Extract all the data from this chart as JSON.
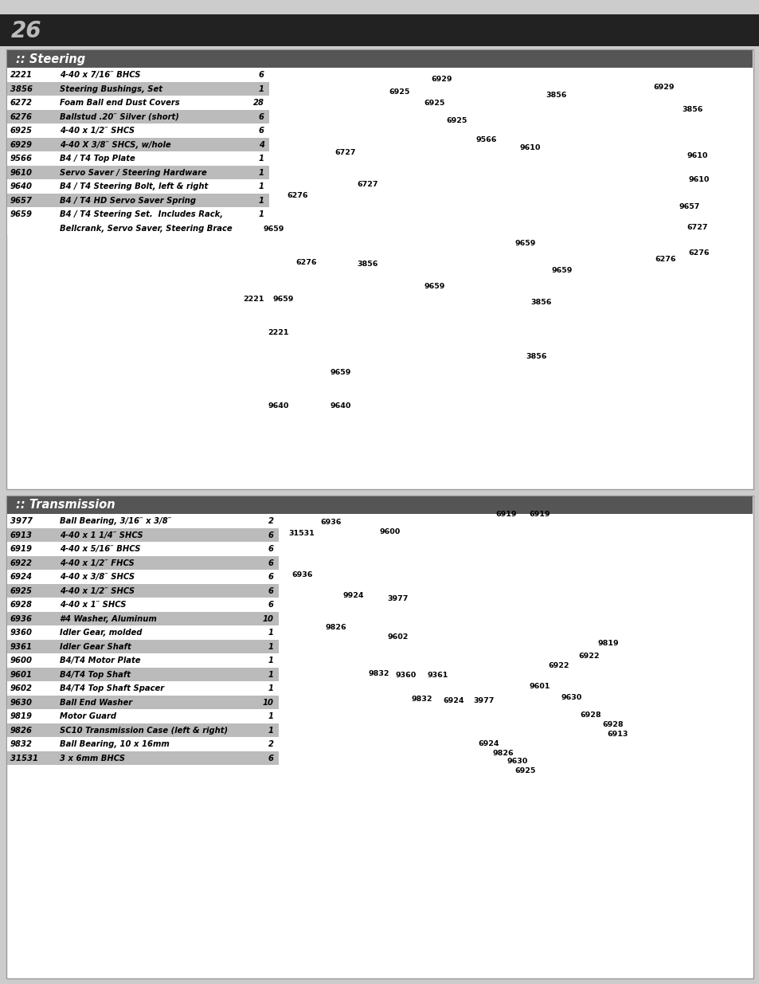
{
  "page_number": "26",
  "bg_color": "#cccccc",
  "page_num_bg": "#222222",
  "page_num_color": "#bbbbbb",
  "section_header_bg": "#555555",
  "panel_bg": "#ffffff",
  "panel_border": "#999999",
  "table_alt_bg": "#bbbbbb",
  "table_normal_bg": "#ffffff",
  "diagram_bg": "#ffffff",
  "steering_title": ":: Steering",
  "transmission_title": ":: Transmission",
  "steering_rows": [
    {
      "part": "2221",
      "desc": "4-40 x 7/16″ BHCS",
      "qty": "6",
      "alt": false
    },
    {
      "part": "3856",
      "desc": "Steering Bushings, Set",
      "qty": "1",
      "alt": true
    },
    {
      "part": "6272",
      "desc": "Foam Ball end Dust Covers",
      "qty": "28",
      "alt": false
    },
    {
      "part": "6276",
      "desc": "Ballstud .20″ Silver (short)",
      "qty": "6",
      "alt": true
    },
    {
      "part": "6925",
      "desc": "4-40 x 1/2″ SHCS",
      "qty": "6",
      "alt": false
    },
    {
      "part": "6929",
      "desc": "4-40 X 3/8″ SHCS, w/hole",
      "qty": "4",
      "alt": true
    },
    {
      "part": "9566",
      "desc": "B4 / T4 Top Plate",
      "qty": "1",
      "alt": false
    },
    {
      "part": "9610",
      "desc": "Servo Saver / Steering Hardware",
      "qty": "1",
      "alt": true
    },
    {
      "part": "9640",
      "desc": "B4 / T4 Steering Bolt, left & right",
      "qty": "1",
      "alt": false
    },
    {
      "part": "9657",
      "desc": "B4 / T4 HD Servo Saver Spring",
      "qty": "1",
      "alt": true
    },
    {
      "part": "9659",
      "desc": "B4 / T4 Steering Set.  Includes Rack,",
      "qty": "1",
      "alt": false
    },
    {
      "part": "",
      "desc": "Bellcrank, Servo Saver, Steering Brace",
      "qty": "",
      "alt": false
    }
  ],
  "transmission_rows": [
    {
      "part": "3977",
      "desc": "Ball Bearing, 3/16″ x 3/8″",
      "qty": "2",
      "alt": false
    },
    {
      "part": "6913",
      "desc": "4-40 x 1 1/4″ SHCS",
      "qty": "6",
      "alt": true
    },
    {
      "part": "6919",
      "desc": "4-40 x 5/16″ BHCS",
      "qty": "6",
      "alt": false
    },
    {
      "part": "6922",
      "desc": "4-40 x 1/2″ FHCS",
      "qty": "6",
      "alt": true
    },
    {
      "part": "6924",
      "desc": "4-40 x 3/8″ SHCS",
      "qty": "6",
      "alt": false
    },
    {
      "part": "6925",
      "desc": "4-40 x 1/2″ SHCS",
      "qty": "6",
      "alt": true
    },
    {
      "part": "6928",
      "desc": "4-40 x 1″ SHCS",
      "qty": "6",
      "alt": false
    },
    {
      "part": "6936",
      "desc": "#4 Washer, Aluminum",
      "qty": "10",
      "alt": true
    },
    {
      "part": "9360",
      "desc": "Idler Gear, molded",
      "qty": "1",
      "alt": false
    },
    {
      "part": "9361",
      "desc": "Idler Gear Shaft",
      "qty": "1",
      "alt": true
    },
    {
      "part": "9600",
      "desc": "B4/T4 Motor Plate",
      "qty": "1",
      "alt": false
    },
    {
      "part": "9601",
      "desc": "B4/T4 Top Shaft",
      "qty": "1",
      "alt": true
    },
    {
      "part": "9602",
      "desc": "B4/T4 Top Shaft Spacer",
      "qty": "1",
      "alt": false
    },
    {
      "part": "9630",
      "desc": "Ball End Washer",
      "qty": "10",
      "alt": true
    },
    {
      "part": "9819",
      "desc": "Motor Guard",
      "qty": "1",
      "alt": false
    },
    {
      "part": "9826",
      "desc": "SC10 Transmission Case (left & right)",
      "qty": "1",
      "alt": true
    },
    {
      "part": "9832",
      "desc": "Ball Bearing, 10 x 16mm",
      "qty": "2",
      "alt": false
    },
    {
      "part": "31531",
      "desc": "3 x 6mm BHCS",
      "qty": "6",
      "alt": true
    }
  ],
  "steering_labels": [
    [
      502,
      116,
      "6925"
    ],
    [
      546,
      130,
      "6925"
    ],
    [
      574,
      152,
      "6925"
    ],
    [
      555,
      100,
      "6929"
    ],
    [
      611,
      175,
      "9566"
    ],
    [
      699,
      120,
      "3856"
    ],
    [
      834,
      110,
      "6929"
    ],
    [
      870,
      138,
      "3856"
    ],
    [
      876,
      195,
      "9610"
    ],
    [
      878,
      225,
      "9610"
    ],
    [
      866,
      260,
      "9657"
    ],
    [
      876,
      285,
      "6727"
    ],
    [
      878,
      318,
      "6276"
    ],
    [
      434,
      192,
      "6727"
    ],
    [
      462,
      232,
      "6727"
    ],
    [
      374,
      245,
      "6276"
    ],
    [
      344,
      288,
      "9659"
    ],
    [
      385,
      330,
      "6276"
    ],
    [
      462,
      332,
      "3856"
    ],
    [
      356,
      375,
      "9659"
    ],
    [
      319,
      375,
      "2221"
    ],
    [
      350,
      418,
      "2221"
    ],
    [
      428,
      468,
      "9659"
    ],
    [
      350,
      510,
      "9640"
    ],
    [
      428,
      510,
      "9640"
    ],
    [
      546,
      360,
      "9659"
    ],
    [
      660,
      305,
      "9659"
    ],
    [
      706,
      340,
      "9659"
    ],
    [
      680,
      380,
      "3856"
    ],
    [
      674,
      448,
      "3856"
    ],
    [
      836,
      325,
      "6276"
    ],
    [
      666,
      185,
      "9610"
    ]
  ],
  "transmission_labels": [
    [
      379,
      670,
      "31531"
    ],
    [
      416,
      655,
      "6936"
    ],
    [
      490,
      668,
      "9600"
    ],
    [
      380,
      722,
      "6936"
    ],
    [
      444,
      748,
      "9924"
    ],
    [
      500,
      752,
      "3977"
    ],
    [
      422,
      788,
      "9826"
    ],
    [
      500,
      800,
      "9602"
    ],
    [
      476,
      846,
      "9832"
    ],
    [
      510,
      848,
      "9360"
    ],
    [
      550,
      848,
      "9361"
    ],
    [
      530,
      878,
      "9832"
    ],
    [
      570,
      880,
      "6924"
    ],
    [
      608,
      880,
      "3977"
    ],
    [
      678,
      862,
      "9601"
    ],
    [
      702,
      836,
      "6922"
    ],
    [
      740,
      824,
      "6922"
    ],
    [
      764,
      808,
      "9819"
    ],
    [
      718,
      876,
      "9630"
    ],
    [
      742,
      898,
      "6928"
    ],
    [
      770,
      910,
      "6928"
    ],
    [
      776,
      922,
      "6913"
    ],
    [
      614,
      934,
      "6924"
    ],
    [
      632,
      946,
      "9826"
    ],
    [
      650,
      956,
      "9630"
    ],
    [
      660,
      968,
      "6925"
    ],
    [
      636,
      646,
      "6919"
    ],
    [
      678,
      646,
      "6919"
    ]
  ]
}
